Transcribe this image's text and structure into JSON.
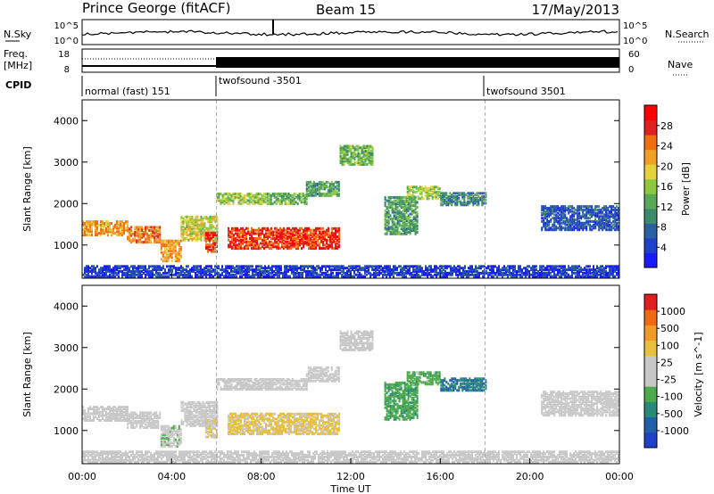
{
  "header": {
    "station": "Prince George (fitACF)",
    "beam": "Beam 15",
    "date": "17/May/2013"
  },
  "colors": {
    "power_scale": [
      "#1a1aff",
      "#2040c8",
      "#2a60a0",
      "#3c8c6a",
      "#58a858",
      "#8cc840",
      "#e6d23c",
      "#f0a028",
      "#f06e14",
      "#e02020",
      "#ff0000"
    ],
    "velocity_scale": [
      "#2040c8",
      "#2060a8",
      "#2a8a7a",
      "#4caa4c",
      "#c8c8c8",
      "#c8c8c8",
      "#e8c040",
      "#f09a28",
      "#f06a14",
      "#e02020"
    ],
    "noise_line": "#000000",
    "mode_divider": "#aaaaaa"
  },
  "top_panel": {
    "left_label": "N.Sky",
    "right_label": "N.Search",
    "ticks_left": [
      "10^5",
      "10^0"
    ],
    "ticks_right": [
      "10^5",
      "10^0"
    ]
  },
  "freq_panel": {
    "left_label_line1": "Freq.",
    "left_label_line2": "[MHz]",
    "right_label": "Nave",
    "ticks_left": [
      "18",
      "8"
    ],
    "ticks_right": [
      "60",
      "0"
    ]
  },
  "cpid": {
    "label": "CPID",
    "modes": [
      {
        "label": "normal (fast) 151",
        "start_hour": 0
      },
      {
        "label": "twofsound -3501",
        "start_hour": 6
      },
      {
        "label": "twofsound 3501",
        "start_hour": 18
      }
    ]
  },
  "chart_data": [
    {
      "type": "heatmap",
      "quantity": "Power",
      "ylabel": "Slant Range [km]",
      "y_ticks": [
        "1000",
        "2000",
        "3000",
        "4000"
      ],
      "ylim": [
        200,
        4500
      ],
      "colorbar": {
        "label": "Power [dB]",
        "ticks": [
          "28",
          "24",
          "20",
          "16",
          "12",
          "8",
          "4"
        ],
        "range": [
          0,
          32
        ]
      },
      "bands": [
        {
          "from_hour": 0.0,
          "to_hour": 2.0,
          "center_km": 1450,
          "width_km": 350,
          "level": 22
        },
        {
          "from_hour": 2.0,
          "to_hour": 3.5,
          "center_km": 1300,
          "width_km": 400,
          "level": 24
        },
        {
          "from_hour": 3.5,
          "to_hour": 4.4,
          "center_km": 900,
          "width_km": 500,
          "level": 22
        },
        {
          "from_hour": 4.4,
          "to_hour": 6.0,
          "center_km": 1450,
          "width_km": 600,
          "level": 18
        },
        {
          "from_hour": 6.0,
          "to_hour": 8.0,
          "center_km": 2150,
          "width_km": 250,
          "level": 16
        },
        {
          "from_hour": 8.0,
          "to_hour": 10.0,
          "center_km": 2150,
          "width_km": 250,
          "level": 14
        },
        {
          "from_hour": 10.0,
          "to_hour": 11.5,
          "center_km": 2400,
          "width_km": 350,
          "level": 12
        },
        {
          "from_hour": 11.5,
          "to_hour": 13.0,
          "center_km": 3200,
          "width_km": 450,
          "level": 14
        },
        {
          "from_hour": 5.5,
          "to_hour": 6.0,
          "center_km": 1100,
          "width_km": 450,
          "level": 28
        },
        {
          "from_hour": 6.5,
          "to_hour": 11.5,
          "center_km": 1200,
          "width_km": 500,
          "level": 27
        },
        {
          "from_hour": 13.5,
          "to_hour": 15.0,
          "center_km": 1750,
          "width_km": 900,
          "level": 12
        },
        {
          "from_hour": 14.5,
          "to_hour": 16.0,
          "center_km": 2300,
          "width_km": 300,
          "level": 16
        },
        {
          "from_hour": 16.0,
          "to_hour": 18.0,
          "center_km": 2150,
          "width_km": 300,
          "level": 10
        },
        {
          "from_hour": 20.5,
          "to_hour": 24.0,
          "center_km": 1700,
          "width_km": 600,
          "level": 6
        },
        {
          "from_hour": 0.0,
          "to_hour": 24.0,
          "center_km": 400,
          "width_km": 250,
          "level": 4
        }
      ]
    },
    {
      "type": "heatmap",
      "quantity": "Velocity",
      "ylabel": "Slant Range [km]",
      "xlabel": "Time UT",
      "x_ticks": [
        "00:00",
        "04:00",
        "08:00",
        "12:00",
        "16:00",
        "20:00",
        "00:00"
      ],
      "xlim": [
        0,
        24
      ],
      "y_ticks": [
        "1000",
        "2000",
        "3000",
        "4000"
      ],
      "ylim": [
        200,
        4500
      ],
      "colorbar": {
        "label": "Velocity [m s^-1]",
        "ticks": [
          "1000",
          "500",
          "100",
          "25",
          "-25",
          "-100",
          "-500",
          "-1000"
        ],
        "range": [
          -1200,
          1200
        ]
      },
      "bands": [
        {
          "from_hour": 0.0,
          "to_hour": 2.0,
          "center_km": 1450,
          "width_km": 350,
          "level": 0
        },
        {
          "from_hour": 2.0,
          "to_hour": 3.5,
          "center_km": 1300,
          "width_km": 400,
          "level": 0
        },
        {
          "from_hour": 3.5,
          "to_hour": 4.4,
          "center_km": 900,
          "width_km": 500,
          "level": -150
        },
        {
          "from_hour": 4.4,
          "to_hour": 6.0,
          "center_km": 1450,
          "width_km": 600,
          "level": 0
        },
        {
          "from_hour": 6.0,
          "to_hour": 8.0,
          "center_km": 2150,
          "width_km": 250,
          "level": 0
        },
        {
          "from_hour": 8.0,
          "to_hour": 10.0,
          "center_km": 2150,
          "width_km": 250,
          "level": 0
        },
        {
          "from_hour": 10.0,
          "to_hour": 11.5,
          "center_km": 2400,
          "width_km": 350,
          "level": 0
        },
        {
          "from_hour": 11.5,
          "to_hour": 13.0,
          "center_km": 3200,
          "width_km": 450,
          "level": 60
        },
        {
          "from_hour": 5.5,
          "to_hour": 6.0,
          "center_km": 1100,
          "width_km": 450,
          "level": 200
        },
        {
          "from_hour": 6.5,
          "to_hour": 11.5,
          "center_km": 1200,
          "width_km": 500,
          "level": 300
        },
        {
          "from_hour": 13.5,
          "to_hour": 15.0,
          "center_km": 1750,
          "width_km": 900,
          "level": -400
        },
        {
          "from_hour": 14.5,
          "to_hour": 16.0,
          "center_km": 2300,
          "width_km": 300,
          "level": -350
        },
        {
          "from_hour": 16.0,
          "to_hour": 18.0,
          "center_km": 2150,
          "width_km": 300,
          "level": -700
        },
        {
          "from_hour": 20.5,
          "to_hour": 24.0,
          "center_km": 1700,
          "width_km": 600,
          "level": 0
        },
        {
          "from_hour": 0.0,
          "to_hour": 24.0,
          "center_km": 400,
          "width_km": 250,
          "level": 0
        }
      ]
    }
  ]
}
